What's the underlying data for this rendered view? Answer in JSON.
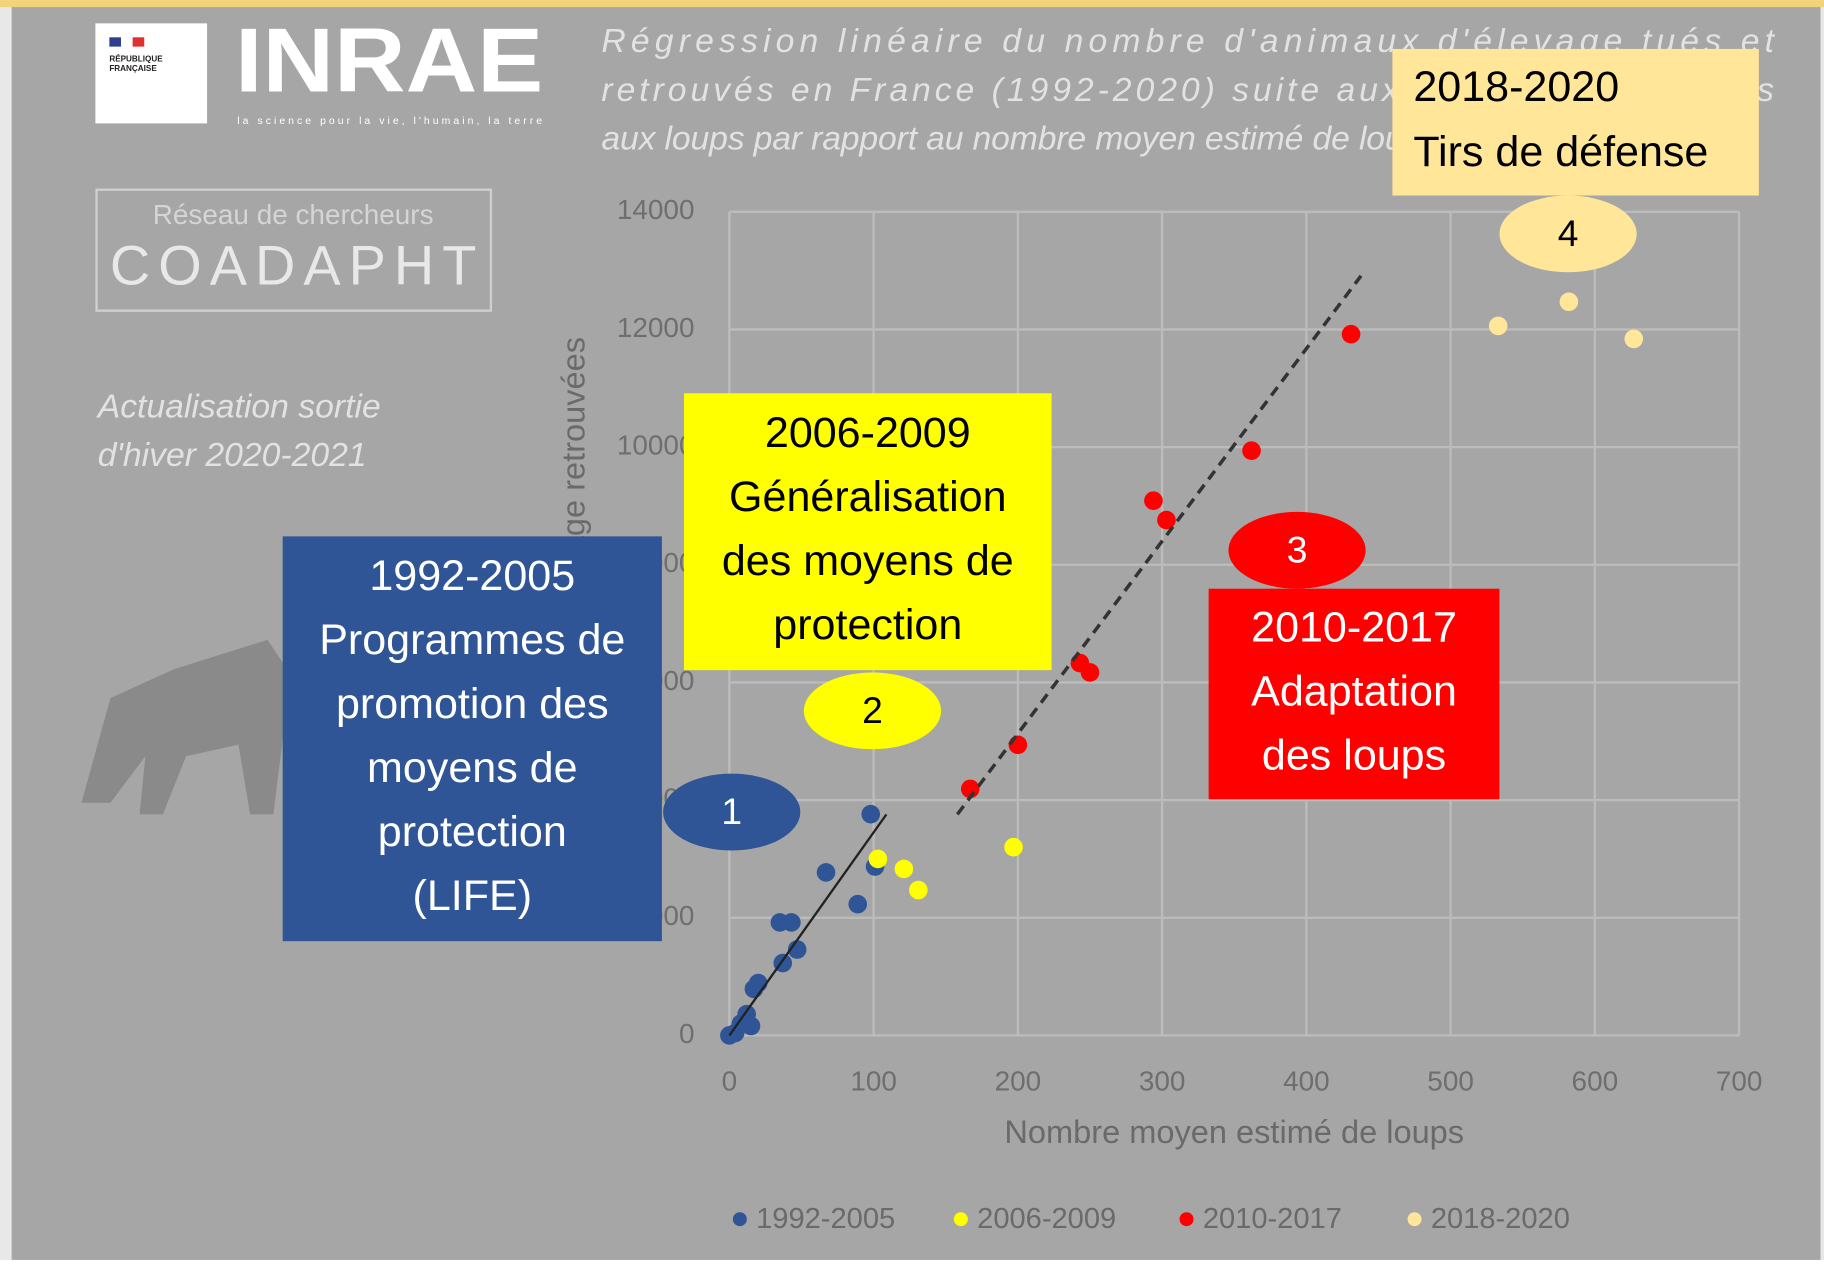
{
  "header": {
    "republique": [
      "RÉPUBLIQUE",
      "FRANÇAISE"
    ],
    "logo": "INRAE",
    "slogan": "la science pour la vie, l'humain, la terre",
    "network_small": "Réseau de chercheurs",
    "network": "COADAPHT",
    "update": [
      "Actualisation sortie",
      "d'hiver 2020-2021"
    ]
  },
  "chart_data": {
    "type": "scatter",
    "title": [
      "Régression linéaire du nombre d'animaux d'élevage tués et",
      "retrouvés en France (1992-2020) suite aux attaques attribuées",
      "aux loups par rapport au nombre moyen estimé de loups"
    ],
    "x_label": "Nombre moyen estimé de loups",
    "y_label": "Nombre d'animaux d'élevage retrouvées",
    "xlim": [
      0,
      700
    ],
    "xticks": [
      0,
      100,
      200,
      300,
      400,
      500,
      600,
      700
    ],
    "ylim": [
      0,
      14000
    ],
    "yticks": [
      0,
      2000,
      4000,
      6000,
      8000,
      10000,
      12000,
      14000
    ],
    "grid": true,
    "legend": "bottom",
    "series": [
      {
        "name": "1992-2005",
        "color": "#2f5597",
        "x": [
          0,
          4,
          8,
          12,
          15,
          17,
          20,
          37,
          47,
          35,
          43,
          67,
          89,
          98,
          101
        ],
        "values": [
          0,
          40,
          200,
          360,
          160,
          790,
          890,
          1230,
          1460,
          1920,
          1920,
          2770,
          2230,
          3760,
          2870
        ]
      },
      {
        "name": "2006-2009",
        "color": "#ffff00",
        "x": [
          103,
          121,
          131,
          197
        ],
        "values": [
          3000,
          2830,
          2470,
          3200
        ]
      },
      {
        "name": "2010-2017",
        "color": "#ff0000",
        "x": [
          167,
          200,
          243,
          250,
          294,
          303,
          362,
          431
        ],
        "values": [
          4190,
          4940,
          6330,
          6170,
          9090,
          8760,
          9940,
          11920
        ]
      },
      {
        "name": "2018-2020",
        "color": "#ffe699",
        "x": [
          533,
          582,
          627
        ],
        "values": [
          12060,
          12470,
          11840
        ]
      }
    ]
  },
  "annotations": [
    {
      "badge": "1",
      "lines": [
        "1992-2005",
        "Programmes de",
        "promotion des",
        "moyens de",
        "protection",
        "(LIFE)"
      ]
    },
    {
      "badge": "2",
      "lines": [
        "2006-2009",
        "Généralisation",
        "des moyens de",
        "protection"
      ]
    },
    {
      "badge": "3",
      "lines": [
        "2010-2017",
        "Adaptation",
        "des loups"
      ]
    },
    {
      "badge": "4",
      "lines": [
        "2018-2020",
        "Tirs de défense"
      ]
    }
  ]
}
